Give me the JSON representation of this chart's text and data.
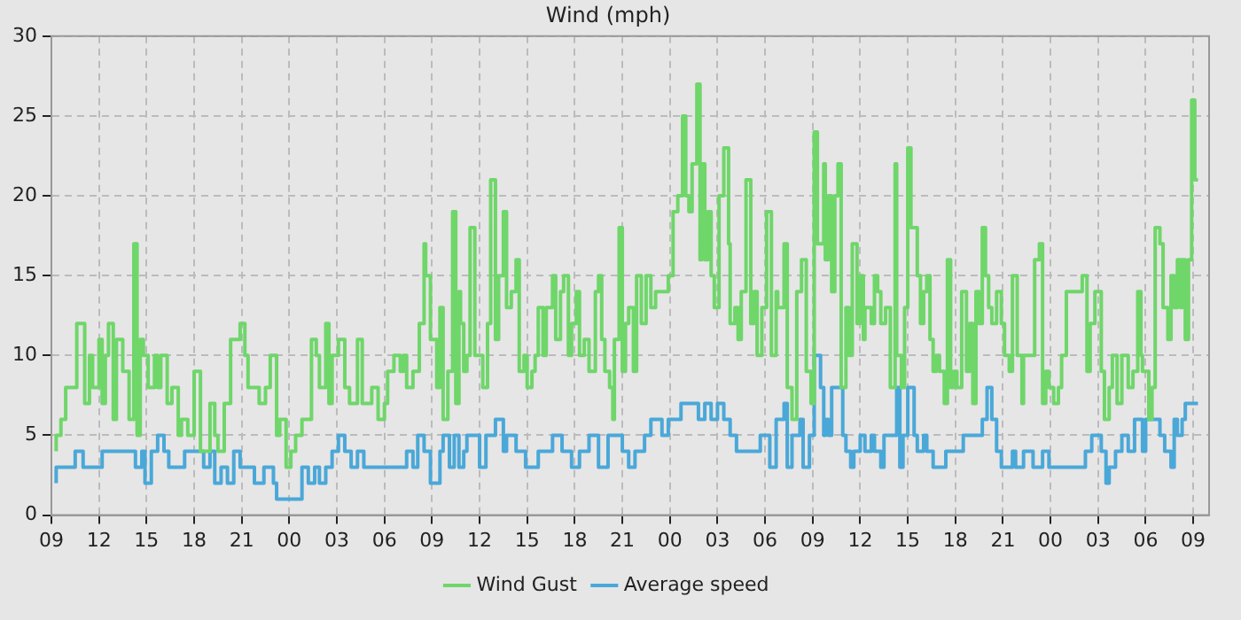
{
  "chart_data": {
    "type": "step",
    "title": "Wind (mph)",
    "xlim": [
      9,
      82
    ],
    "ylim": [
      0,
      30
    ],
    "yticks": [
      0,
      5,
      10,
      15,
      20,
      25,
      30
    ],
    "xticks": [
      {
        "value": 9,
        "label": "09"
      },
      {
        "value": 12,
        "label": "12"
      },
      {
        "value": 15,
        "label": "15"
      },
      {
        "value": 18,
        "label": "18"
      },
      {
        "value": 21,
        "label": "21"
      },
      {
        "value": 24,
        "label": "00"
      },
      {
        "value": 27,
        "label": "03"
      },
      {
        "value": 30,
        "label": "06"
      },
      {
        "value": 33,
        "label": "09"
      },
      {
        "value": 36,
        "label": "12"
      },
      {
        "value": 39,
        "label": "15"
      },
      {
        "value": 42,
        "label": "18"
      },
      {
        "value": 45,
        "label": "21"
      },
      {
        "value": 48,
        "label": "00"
      },
      {
        "value": 51,
        "label": "03"
      },
      {
        "value": 54,
        "label": "06"
      },
      {
        "value": 57,
        "label": "09"
      },
      {
        "value": 60,
        "label": "12"
      },
      {
        "value": 63,
        "label": "15"
      },
      {
        "value": 66,
        "label": "18"
      },
      {
        "value": 69,
        "label": "21"
      },
      {
        "value": 72,
        "label": "00"
      },
      {
        "value": 75,
        "label": "03"
      },
      {
        "value": 78,
        "label": "06"
      },
      {
        "value": 81,
        "label": "09"
      }
    ],
    "grid": true,
    "legend": "bottom",
    "line_style": "solid",
    "marker": "none",
    "series": [
      {
        "name": "Wind Gust",
        "color": "#6fd66a",
        "x": [
          9.3,
          9.6,
          9.9,
          10.6,
          11.1,
          11.4,
          11.6,
          12.0,
          12.2,
          12.4,
          12.6,
          12.9,
          13.1,
          13.5,
          13.9,
          14.2,
          14.4,
          14.6,
          14.8,
          15.1,
          15.5,
          15.7,
          15.9,
          16.3,
          16.6,
          17.0,
          17.2,
          17.6,
          18.0,
          18.4,
          19.0,
          19.3,
          19.5,
          19.9,
          20.3,
          20.9,
          21.2,
          21.4,
          22.1,
          22.5,
          22.8,
          23.2,
          23.4,
          23.8,
          24.1,
          24.4,
          24.8,
          25.4,
          25.7,
          25.9,
          26.3,
          26.5,
          26.7,
          27.1,
          27.5,
          27.8,
          28.3,
          28.6,
          29.2,
          29.6,
          30.0,
          30.2,
          30.6,
          31.0,
          31.2,
          31.4,
          31.8,
          32.2,
          32.5,
          32.6,
          32.9,
          33.3,
          33.5,
          33.7,
          34.0,
          34.3,
          34.5,
          34.7,
          34.8,
          35.0,
          35.2,
          35.4,
          35.7,
          36.2,
          36.5,
          36.7,
          37.0,
          37.2,
          37.5,
          37.7,
          38.0,
          38.3,
          38.5,
          38.8,
          39.0,
          39.3,
          39.5,
          39.7,
          40.0,
          40.2,
          40.6,
          40.8,
          41.1,
          41.3,
          41.6,
          41.8,
          42.1,
          42.3,
          42.6,
          42.9,
          43.3,
          43.5,
          43.7,
          43.9,
          44.2,
          44.4,
          44.5,
          44.8,
          45.0,
          45.2,
          45.4,
          45.7,
          45.9,
          46.2,
          46.5,
          46.8,
          47.1,
          47.9,
          48.2,
          48.5,
          48.8,
          49.0,
          49.2,
          49.4,
          49.7,
          49.9,
          50.0,
          50.2,
          50.4,
          50.6,
          50.8,
          51.1,
          51.4,
          51.7,
          51.8,
          52.1,
          52.3,
          52.5,
          52.8,
          53.1,
          53.3,
          53.5,
          53.8,
          54.1,
          54.4,
          54.7,
          54.8,
          55.2,
          55.4,
          55.7,
          56.0,
          56.3,
          56.6,
          56.9,
          57.1,
          57.3,
          57.7,
          57.8,
          58.0,
          58.2,
          58.4,
          58.6,
          58.8,
          59.1,
          59.3,
          59.5,
          59.8,
          60.0,
          60.2,
          60.3,
          60.7,
          60.9,
          61.1,
          61.3,
          61.6,
          61.9,
          62.2,
          62.3,
          62.6,
          62.8,
          63.0,
          63.2,
          63.6,
          63.8,
          64.0,
          64.2,
          64.4,
          64.6,
          64.8,
          65.0,
          65.3,
          65.5,
          65.7,
          65.9,
          66.1,
          66.4,
          66.7,
          66.9,
          67.1,
          67.3,
          67.5,
          67.7,
          67.9,
          68.1,
          68.3,
          68.6,
          68.9,
          69.1,
          69.4,
          69.6,
          69.9,
          70.2,
          70.3,
          71.0,
          71.3,
          71.5,
          71.7,
          71.9,
          72.2,
          72.5,
          72.7,
          73.0,
          74.0,
          74.3,
          74.5,
          74.8,
          75.2,
          75.4,
          75.7,
          75.9,
          76.2,
          76.5,
          76.9,
          77.2,
          77.5,
          77.7,
          77.8,
          78.2,
          78.4,
          78.6,
          78.9,
          79.1,
          79.4,
          79.6,
          79.8,
          80.0,
          80.2,
          80.3,
          80.5,
          80.7,
          80.9,
          81.1,
          81.3
        ],
        "values": [
          4,
          5,
          6,
          8,
          12,
          7,
          10,
          8,
          11,
          7,
          10,
          12,
          6,
          11,
          9,
          6,
          17,
          5,
          11,
          10,
          8,
          10,
          8,
          10,
          7,
          8,
          5,
          6,
          5,
          9,
          4,
          7,
          5,
          4,
          7,
          11,
          12,
          10,
          8,
          7,
          8,
          10,
          5,
          6,
          3,
          4,
          5,
          6,
          11,
          10,
          8,
          12,
          7,
          10,
          11,
          8,
          7,
          11,
          7,
          8,
          6,
          7,
          9,
          10,
          9,
          10,
          8,
          9,
          12,
          17,
          15,
          11,
          8,
          13,
          6,
          9,
          19,
          7,
          14,
          12,
          9,
          10,
          18,
          10,
          8,
          12,
          21,
          11,
          15,
          19,
          13,
          14,
          16,
          9,
          10,
          8,
          9,
          10,
          13,
          10,
          13,
          15,
          11,
          14,
          15,
          10,
          12,
          14,
          10,
          11,
          9,
          14,
          15,
          11,
          9,
          8,
          6,
          11,
          18,
          9,
          12,
          13,
          9,
          15,
          12,
          15,
          13,
          14,
          15,
          19,
          20,
          25,
          20,
          19,
          22,
          27,
          16,
          22,
          16,
          19,
          15,
          13,
          20,
          23,
          17,
          12,
          13,
          11,
          14,
          21,
          12,
          14,
          10,
          13,
          19,
          10,
          14,
          13,
          17,
          8,
          6,
          14,
          16,
          9,
          7,
          24,
          17,
          22,
          16,
          20,
          14,
          20,
          22,
          8,
          13,
          10,
          17,
          12,
          15,
          11,
          13,
          12,
          15,
          14,
          12,
          13,
          8,
          22,
          10,
          8,
          13,
          23,
          18,
          15,
          12,
          14,
          15,
          11,
          9,
          10,
          9,
          7,
          16,
          8,
          9,
          8,
          14,
          9,
          12,
          7,
          14,
          12,
          18,
          15,
          13,
          12,
          14,
          12,
          10,
          9,
          15,
          10,
          7,
          10,
          16,
          17,
          7,
          9,
          8,
          7,
          8,
          10,
          14,
          15,
          9,
          12,
          14,
          9,
          6,
          8,
          10,
          7,
          10,
          8,
          9,
          14,
          10,
          9,
          6,
          8,
          18,
          17,
          13,
          11,
          15,
          13,
          16,
          13,
          16,
          11,
          16,
          26,
          21
        ]
      },
      {
        "name": "Average speed",
        "color": "#4aa8d8",
        "x": [
          9.3,
          10.5,
          11.0,
          12.2,
          14.3,
          14.7,
          14.9,
          15.3,
          15.7,
          16.1,
          16.4,
          17.4,
          18.6,
          19.0,
          19.3,
          19.7,
          20.1,
          20.5,
          20.9,
          21.8,
          22.4,
          23.0,
          23.2,
          24.8,
          25.2,
          25.6,
          25.9,
          26.3,
          26.7,
          27.1,
          27.5,
          27.9,
          28.3,
          28.7,
          31.4,
          31.8,
          32.1,
          32.5,
          32.9,
          33.5,
          33.7,
          34.1,
          34.4,
          34.7,
          35.0,
          35.2,
          36.0,
          36.4,
          37.0,
          37.5,
          37.7,
          38.3,
          38.9,
          39.7,
          40.6,
          41.2,
          41.8,
          42.3,
          42.9,
          43.5,
          44.1,
          45.0,
          45.4,
          45.8,
          46.4,
          46.8,
          47.5,
          47.9,
          48.7,
          49.8,
          50.2,
          50.6,
          51.0,
          51.4,
          51.8,
          52.2,
          53.7,
          54.3,
          54.7,
          55.2,
          55.4,
          55.7,
          56.2,
          56.4,
          56.8,
          57.1,
          57.5,
          57.7,
          57.8,
          58.0,
          58.2,
          58.9,
          59.1,
          59.4,
          59.6,
          60.0,
          60.3,
          60.7,
          60.9,
          61.3,
          61.5,
          62.3,
          62.5,
          62.7,
          63.0,
          63.4,
          63.6,
          64.0,
          64.2,
          64.6,
          65.4,
          66.5,
          67.7,
          68.0,
          68.3,
          68.6,
          68.9,
          69.6,
          69.8,
          70.3,
          70.9,
          71.5,
          71.9,
          74.2,
          74.6,
          75.2,
          75.5,
          75.7,
          76.1,
          76.5,
          76.9,
          77.3,
          77.8,
          78.0,
          78.9,
          79.2,
          79.6,
          79.8,
          80.0,
          80.3,
          80.5,
          81.3
        ],
        "values": [
          2,
          3,
          4,
          3,
          4,
          3,
          4,
          2,
          4,
          5,
          4,
          3,
          4,
          3,
          4,
          2,
          3,
          2,
          4,
          3,
          2,
          3,
          2,
          1,
          3,
          2,
          3,
          2,
          3,
          4,
          5,
          4,
          3,
          4,
          3,
          4,
          3,
          5,
          4,
          2,
          4,
          5,
          3,
          5,
          3,
          4,
          5,
          3,
          5,
          6,
          4,
          5,
          4,
          3,
          4,
          5,
          4,
          3,
          4,
          5,
          3,
          5,
          4,
          3,
          4,
          5,
          6,
          5,
          6,
          7,
          6,
          7,
          6,
          7,
          6,
          5,
          4,
          5,
          3,
          6,
          7,
          3,
          5,
          6,
          3,
          5,
          10,
          8,
          5,
          6,
          5,
          8,
          5,
          4,
          3,
          4,
          5,
          4,
          5,
          4,
          3,
          5,
          8,
          3,
          5,
          8,
          5,
          4,
          5,
          4,
          3,
          4,
          5,
          6,
          8,
          6,
          4,
          3,
          4,
          3,
          4,
          3,
          4,
          3,
          4,
          5,
          4,
          2,
          3,
          4,
          5,
          4,
          6,
          4,
          6,
          5,
          4,
          3,
          6,
          5,
          6,
          7
        ]
      }
    ]
  }
}
